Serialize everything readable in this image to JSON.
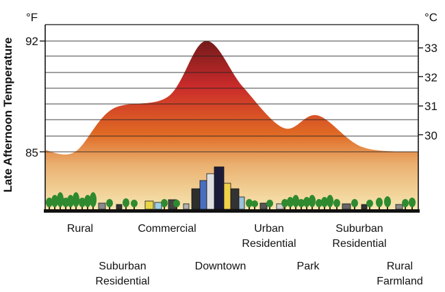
{
  "axis": {
    "ylabel": "Late Afternoon Temperature",
    "left_unit": "°F",
    "right_unit": "°C",
    "left_ticks": [
      "92",
      "85"
    ],
    "right_ticks": [
      "33",
      "32",
      "31",
      "30"
    ]
  },
  "chart_data": {
    "type": "area",
    "ylabel": "Late Afternoon Temperature",
    "y_unit_left": "°F",
    "y_unit_right": "°C",
    "left_tick_values": [
      92,
      85
    ],
    "right_tick_values": [
      33,
      32,
      31,
      30
    ],
    "ylim_f": [
      82.8,
      93.8
    ],
    "profile_f": [
      {
        "x": 0.0,
        "y": 85.1
      },
      {
        "x": 0.08,
        "y": 85.0
      },
      {
        "x": 0.18,
        "y": 87.7
      },
      {
        "x": 0.33,
        "y": 88.5
      },
      {
        "x": 0.43,
        "y": 92.0
      },
      {
        "x": 0.53,
        "y": 89.1
      },
      {
        "x": 0.64,
        "y": 86.5
      },
      {
        "x": 0.73,
        "y": 87.3
      },
      {
        "x": 0.85,
        "y": 85.3
      },
      {
        "x": 1.0,
        "y": 85.0
      }
    ]
  },
  "zones_row1": [
    {
      "id": "rural",
      "text": "Rural"
    },
    {
      "id": "commercial",
      "text": "Commercial"
    },
    {
      "id": "urban-residential",
      "line1": "Urban",
      "line2": "Residential"
    },
    {
      "id": "suburban-residential-right",
      "line1": "Suburban",
      "line2": "Residential"
    }
  ],
  "zones_row2": [
    {
      "id": "suburban-residential-left",
      "line1": "Suburban",
      "line2": "Residential"
    },
    {
      "id": "downtown",
      "text": "Downtown"
    },
    {
      "id": "park",
      "text": "Park"
    },
    {
      "id": "rural-farmland",
      "line1": "Rural",
      "line2": "Farmland"
    }
  ],
  "colors": {
    "peak": "#6e1a1a",
    "mid": "#c92a2a",
    "low": "#e06a24",
    "base": "#f6e6b0",
    "grid": "#222222",
    "trees": "#2f8a2f"
  }
}
